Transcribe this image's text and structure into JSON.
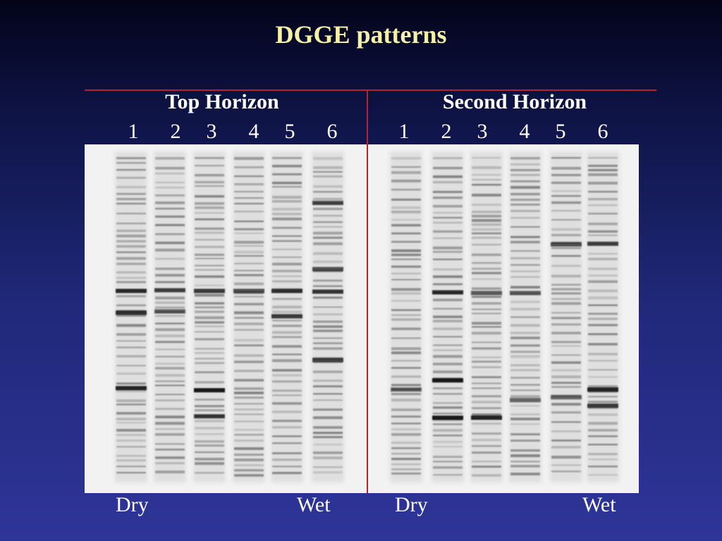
{
  "title": "DGGE patterns",
  "colors": {
    "title": "#f7f1a8",
    "divider": "#b3242e",
    "gel_background": "#f2f2f2",
    "band": "#111111"
  },
  "panels": [
    {
      "heading": "Top Horizon",
      "lanes": [
        "1",
        "2",
        "3",
        "4",
        "5",
        "6"
      ],
      "left_label": "Dry",
      "right_label": "Wet"
    },
    {
      "heading": "Second Horizon",
      "lanes": [
        "1",
        "2",
        "3",
        "4",
        "5",
        "6"
      ],
      "left_label": "Dry",
      "right_label": "Wet"
    }
  ]
}
